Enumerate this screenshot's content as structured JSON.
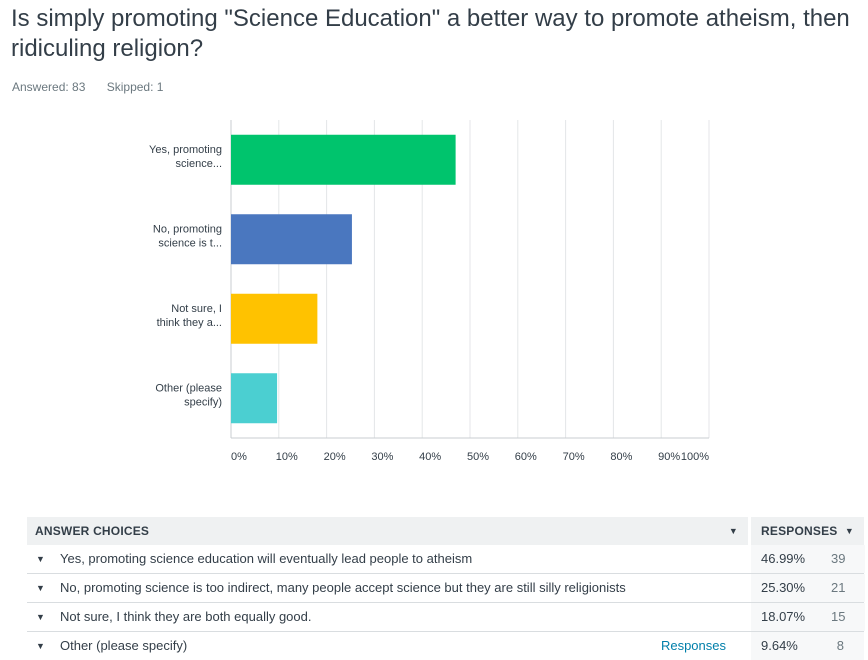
{
  "question": {
    "title": "Is simply promoting \"Science Education\" a better way to promote atheism, then ridiculing religion?",
    "answered_label": "Answered: 83",
    "skipped_label": "Skipped: 1"
  },
  "chart_data": {
    "type": "bar",
    "orientation": "horizontal",
    "categories": [
      "Yes, promoting science...",
      "No, promoting science is t...",
      "Not sure, I think they a...",
      "Other (please specify)"
    ],
    "category_lines": [
      [
        "Yes, promoting",
        "science..."
      ],
      [
        "No, promoting",
        "science is t..."
      ],
      [
        "Not sure, I",
        "think they a..."
      ],
      [
        "Other (please",
        "specify)"
      ]
    ],
    "values": [
      46.99,
      25.3,
      18.07,
      9.64
    ],
    "colors": [
      "#00c46d",
      "#4a77bf",
      "#ffc200",
      "#4bcfd1"
    ],
    "xlim": [
      0,
      100
    ],
    "xticks": [
      "0%",
      "10%",
      "20%",
      "30%",
      "40%",
      "50%",
      "60%",
      "70%",
      "80%",
      "90%",
      "100%"
    ],
    "grid": true
  },
  "table": {
    "header_choice": "ANSWER CHOICES",
    "header_responses": "RESPONSES",
    "rows": [
      {
        "choice": "Yes, promoting science education will eventually lead people to atheism",
        "pct": "46.99%",
        "count": "39",
        "link": ""
      },
      {
        "choice": "No, promoting science is too indirect, many people accept science but they are still silly religionists",
        "pct": "25.30%",
        "count": "21",
        "link": ""
      },
      {
        "choice": "Not sure, I think they are both equally good.",
        "pct": "18.07%",
        "count": "15",
        "link": ""
      },
      {
        "choice": "Other (please specify)",
        "pct": "9.64%",
        "count": "8",
        "link": "Responses"
      }
    ]
  }
}
